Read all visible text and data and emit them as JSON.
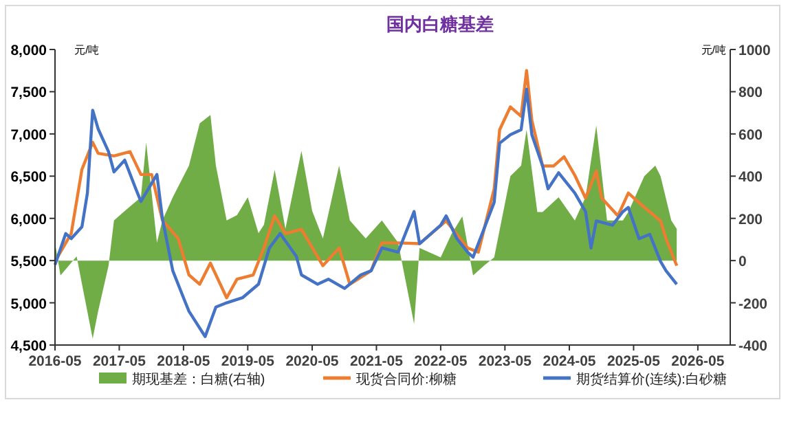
{
  "chart_data": {
    "type": "line",
    "title": "国内白糖基差",
    "ylabel": "元/吨",
    "y2label": "元/吨",
    "xlim": [
      "2016-05",
      "2026-11"
    ],
    "xticks": [
      "2016-05",
      "2017-05",
      "2018-05",
      "2019-05",
      "2020-05",
      "2021-05",
      "2022-05",
      "2023-05",
      "2024-05",
      "2025-05",
      "2026-05"
    ],
    "ylim": [
      4500,
      8000
    ],
    "yticks": [
      {
        "value": 4500,
        "label": "4,500"
      },
      {
        "value": 5000,
        "label": "5,000"
      },
      {
        "value": 5500,
        "label": "5,500"
      },
      {
        "value": 6000,
        "label": "6,000"
      },
      {
        "value": 6500,
        "label": "6,500"
      },
      {
        "value": 7000,
        "label": "7,000"
      },
      {
        "value": 7500,
        "label": "7,500"
      },
      {
        "value": 8000,
        "label": "8,000"
      }
    ],
    "y2lim": [
      -400,
      1000
    ],
    "y2ticks": [
      -400,
      -200,
      0,
      200,
      400,
      600,
      800,
      1000
    ],
    "grid": false,
    "legend": "bottom",
    "line_style": "solid",
    "marker": "none",
    "series": [
      {
        "name": "期现基差：白糖(右轴)",
        "type": "area",
        "axis": "y2",
        "color": "#70ad47",
        "x": [
          "2016-05",
          "2016-06",
          "2016-09",
          "2016-10",
          "2016-12",
          "2017-01",
          "2017-03",
          "2017-04",
          "2017-06",
          "2017-09",
          "2017-10",
          "2017-12",
          "2018-01",
          "2018-03",
          "2018-06",
          "2018-08",
          "2018-10",
          "2018-11",
          "2019-01",
          "2019-03",
          "2019-05",
          "2019-07",
          "2019-08",
          "2019-10",
          "2019-12",
          "2020-03",
          "2020-05",
          "2020-07",
          "2020-10",
          "2020-12",
          "2021-03",
          "2021-06",
          "2021-09",
          "2021-12",
          "2022-01",
          "2022-05",
          "2022-07",
          "2022-09",
          "2022-11",
          "2023-01",
          "2023-03",
          "2023-06",
          "2023-08",
          "2023-09",
          "2023-11",
          "2023-12",
          "2024-03",
          "2024-06",
          "2024-08",
          "2024-10",
          "2024-12",
          "2025-03",
          "2025-04",
          "2025-07",
          "2025-09",
          "2025-10",
          "2025-12",
          "2026-01"
        ],
        "values": [
          85,
          -70,
          20,
          -110,
          -370,
          -240,
          -25,
          190,
          235,
          300,
          560,
          85,
          190,
          300,
          450,
          650,
          690,
          450,
          190,
          215,
          300,
          130,
          170,
          430,
          150,
          520,
          235,
          105,
          450,
          190,
          105,
          190,
          85,
          -300,
          60,
          15,
          125,
          210,
          -70,
          -25,
          15,
          400,
          450,
          620,
          230,
          230,
          300,
          190,
          300,
          640,
          190,
          190,
          230,
          400,
          450,
          400,
          190,
          150
        ]
      },
      {
        "name": "现货合同价:柳糖",
        "color": "#ed7d31",
        "x": [
          "2016-05",
          "2016-08",
          "2016-10",
          "2016-12",
          "2017-01",
          "2017-04",
          "2017-07",
          "2017-09",
          "2017-11",
          "2018-01",
          "2018-04",
          "2018-06",
          "2018-08",
          "2018-10",
          "2019-01",
          "2019-03",
          "2019-06",
          "2019-08",
          "2019-10",
          "2019-12",
          "2020-03",
          "2020-07",
          "2020-10",
          "2020-12",
          "2021-04",
          "2021-06",
          "2021-09",
          "2022-01",
          "2022-06",
          "2022-10",
          "2022-12",
          "2023-03",
          "2023-04",
          "2023-06",
          "2023-08",
          "2023-09",
          "2023-10",
          "2023-12",
          "2024-02",
          "2024-04",
          "2024-06",
          "2024-08",
          "2024-10",
          "2024-11",
          "2025-02",
          "2025-04",
          "2025-07",
          "2025-10",
          "2025-11",
          "2026-01"
        ],
        "values": [
          5490,
          5820,
          6580,
          6900,
          6770,
          6740,
          6790,
          6520,
          6520,
          5980,
          5760,
          5330,
          5220,
          5470,
          5060,
          5280,
          5330,
          5650,
          6030,
          5820,
          5870,
          5440,
          5650,
          5220,
          5380,
          5710,
          5710,
          5700,
          5970,
          5650,
          5600,
          6350,
          7050,
          7320,
          7210,
          7750,
          7160,
          6620,
          6620,
          6730,
          6510,
          6240,
          6560,
          6240,
          6030,
          6300,
          6130,
          5970,
          5760,
          5440
        ]
      },
      {
        "name": "期货结算价(连续):白砂糖",
        "color": "#4472c4",
        "x": [
          "2016-05",
          "2016-07",
          "2016-08",
          "2016-10",
          "2016-11",
          "2016-12",
          "2017-01",
          "2017-03",
          "2017-04",
          "2017-06",
          "2017-08",
          "2017-09",
          "2017-12",
          "2018-01",
          "2018-03",
          "2018-05",
          "2018-06",
          "2018-09",
          "2018-11",
          "2019-01",
          "2019-04",
          "2019-07",
          "2019-09",
          "2019-11",
          "2020-02",
          "2020-03",
          "2020-06",
          "2020-08",
          "2020-11",
          "2021-02",
          "2021-04",
          "2021-06",
          "2021-09",
          "2021-12",
          "2022-01",
          "2022-05",
          "2022-06",
          "2022-08",
          "2022-10",
          "2022-11",
          "2023-01",
          "2023-03",
          "2023-04",
          "2023-06",
          "2023-08",
          "2023-09",
          "2023-10",
          "2023-12",
          "2024-01",
          "2024-03",
          "2024-06",
          "2024-08",
          "2024-09",
          "2024-10",
          "2025-01",
          "2025-03",
          "2025-04",
          "2025-06",
          "2025-08",
          "2025-10",
          "2025-11",
          "2026-01"
        ],
        "values": [
          5450,
          5820,
          5760,
          5900,
          6300,
          7280,
          7060,
          6790,
          6550,
          6690,
          6360,
          6200,
          6520,
          6000,
          5380,
          5060,
          4900,
          4600,
          4950,
          5000,
          5060,
          5220,
          5650,
          5820,
          5550,
          5330,
          5220,
          5280,
          5170,
          5330,
          5380,
          5650,
          5600,
          6080,
          5700,
          5920,
          6030,
          5760,
          5600,
          5540,
          5870,
          6190,
          6890,
          6990,
          7050,
          7530,
          6990,
          6620,
          6350,
          6540,
          6300,
          6080,
          5650,
          5970,
          5920,
          6080,
          6130,
          5760,
          5810,
          5490,
          5380,
          5220
        ]
      }
    ]
  }
}
